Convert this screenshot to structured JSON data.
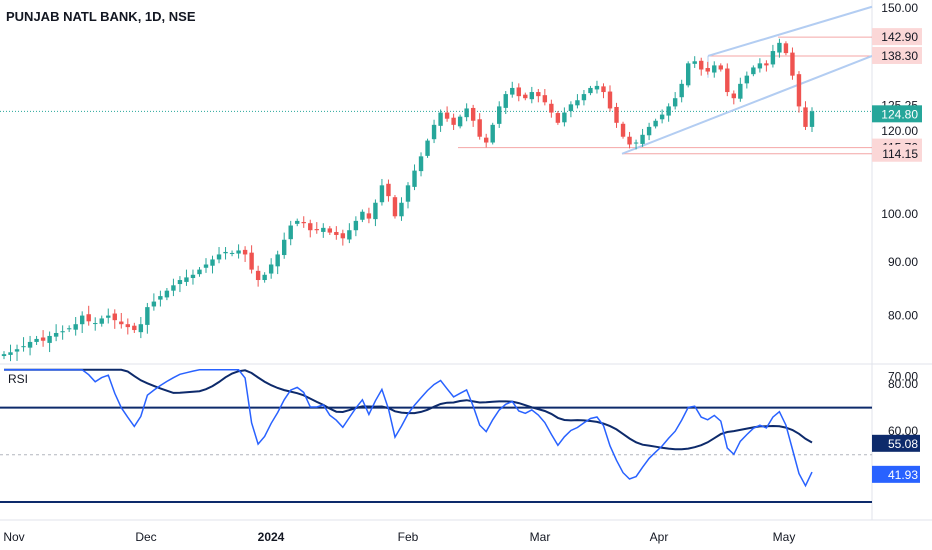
{
  "header": {
    "title": "PUNJAB NATL BANK, 1D, NSE"
  },
  "rsi_panel": {
    "label": "RSI"
  },
  "colors": {
    "up": "#26a69a",
    "down": "#ef5350",
    "rsi_line": "#2962ff",
    "rsi_ma": "#0d2a6b",
    "band": "#0d2a6b",
    "trendline": "#b3cdf2"
  },
  "chart_data": [
    {
      "type": "candlestick",
      "title": "PUNJAB NATL BANK, 1D, NSE",
      "x_labels": [
        "Nov",
        "Dec",
        "2024",
        "Feb",
        "Mar",
        "Apr",
        "May"
      ],
      "y_ticks": [
        "150.00",
        "120.00",
        "100.00",
        "90.00",
        "80.00",
        "70.00"
      ],
      "ylim": [
        64,
        150
      ],
      "price_labels": [
        {
          "text": "142.90",
          "value": 142.9,
          "style": "resistance"
        },
        {
          "text": "138.30",
          "value": 138.3,
          "style": "resistance"
        },
        {
          "text": "125.25",
          "value": 125.25,
          "style": "plain"
        },
        {
          "text": "124.80",
          "value": 124.8,
          "style": "last"
        },
        {
          "text": "115.70",
          "value": 115.7,
          "style": "resistance"
        },
        {
          "text": "114.15",
          "value": 114.15,
          "style": "resistance"
        }
      ],
      "closes": [
        73.5,
        73.8,
        74.3,
        74.8,
        75.5,
        76.0,
        75.7,
        76.5,
        77.0,
        77.3,
        77.8,
        78.5,
        80.0,
        79.0,
        78.7,
        79.5,
        80.0,
        79.2,
        78.5,
        78.0,
        77.5,
        78.5,
        81.5,
        82.5,
        83.5,
        84.5,
        85.5,
        86.5,
        87.0,
        87.5,
        88.5,
        89.5,
        90.5,
        91.5,
        92.0,
        91.8,
        92.3,
        91.5,
        88.5,
        86.5,
        87.5,
        89.5,
        91.5,
        94.5,
        97.5,
        98.5,
        98.0,
        96.5,
        96.5,
        97.0,
        96.0,
        95.5,
        94.8,
        96.5,
        98.5,
        100.5,
        99.0,
        102.5,
        106.5,
        104.0,
        99.5,
        102.5,
        106.5,
        110.0,
        113.5,
        117.5,
        121.5,
        124.5,
        123.0,
        121.5,
        123.5,
        125.5,
        122.5,
        118.5,
        117.0,
        121.5,
        126.0,
        129.0,
        130.5,
        128.5,
        128.0,
        129.5,
        128.5,
        127.0,
        124.5,
        122.0,
        124.5,
        126.5,
        127.5,
        129.0,
        130.5,
        131.0,
        129.5,
        125.5,
        122.0,
        118.5,
        116.5,
        117.0,
        119.0,
        121.0,
        122.5,
        124.0,
        126.0,
        128.0,
        131.5,
        136.5,
        137.0,
        135.0,
        134.5,
        136.0,
        135.0,
        129.5,
        128.0,
        131.5,
        133.5,
        135.5,
        136.5,
        136.0,
        139.5,
        141.5,
        139.0,
        133.5,
        126.0,
        121.0,
        124.8
      ],
      "annotations": [
        "ascending channel upper line",
        "ascending channel lower line",
        "horizontal levels at 142.90, 138.30, 115.70, 114.15"
      ]
    },
    {
      "type": "line",
      "title": "RSI",
      "y_ticks": [
        "80.00",
        "60.00",
        "55.08",
        "41.93"
      ],
      "ylim": [
        25,
        88
      ],
      "bands": [
        70,
        30
      ],
      "series": [
        {
          "name": "RSI",
          "last": 41.93
        },
        {
          "name": "RSI-based MA",
          "last": 55.08
        }
      ]
    }
  ]
}
